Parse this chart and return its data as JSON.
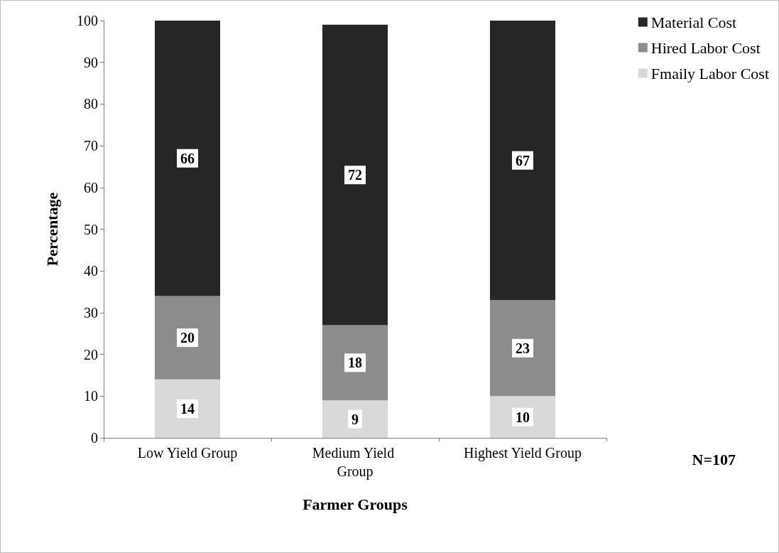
{
  "chart_data": {
    "type": "bar",
    "stacked": true,
    "xlabel": "Farmer Groups",
    "ylabel": "Percentage",
    "categories": [
      "Low Yield Group",
      "Medium Yield Group",
      "Highest Yield Group"
    ],
    "series": [
      {
        "name": "Fmaily Labor Cost",
        "color": "#d9d9d9",
        "values": [
          14,
          9,
          10
        ]
      },
      {
        "name": "Hired Labor Cost",
        "color": "#8c8c8c",
        "values": [
          20,
          18,
          23
        ]
      },
      {
        "name": "Material Cost",
        "color": "#262626",
        "values": [
          66,
          72,
          67
        ]
      }
    ],
    "ylim": [
      0,
      100
    ],
    "yticks": [
      0,
      10,
      20,
      30,
      40,
      50,
      60,
      70,
      80,
      90,
      100
    ],
    "data_labels": true,
    "grid": false,
    "legend": "top right",
    "annotations": [
      "N=107"
    ]
  }
}
